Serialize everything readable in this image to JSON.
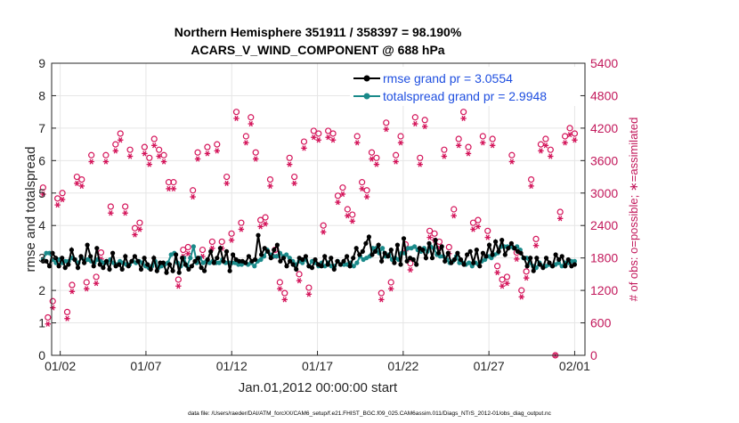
{
  "chart_data": {
    "type": "line",
    "title_line1": "Northern Hemisphere 351911 / 358397 = 98.190%",
    "title_line2": "ACARS_V_WIND_COMPONENT @ 688 hPa",
    "xlabel": "Jan.01,2012 00:00:00 start",
    "ylabel_left": "rmse and totalspread",
    "ylabel_right": "# of obs: o=possible; ∗=assimilated",
    "footer": "data file: /Users/raeder/DAI/ATM_forcXX/CAM6_setup/f.e21.FHIST_BGC.f09_025.CAM6assim.011/Diags_NTrS_2012-01/obs_diag_output.nc",
    "x_range_days": [
      0.5,
      31.6
    ],
    "xticks": [
      {
        "day": 1,
        "label": "01/02"
      },
      {
        "day": 6,
        "label": "01/07"
      },
      {
        "day": 11,
        "label": "01/12"
      },
      {
        "day": 16,
        "label": "01/17"
      },
      {
        "day": 21,
        "label": "01/22"
      },
      {
        "day": 26,
        "label": "01/27"
      },
      {
        "day": 31,
        "label": "02/01"
      }
    ],
    "ylim_left": [
      0,
      9
    ],
    "yticks_left": [
      "0",
      "1",
      "2",
      "3",
      "4",
      "5",
      "6",
      "7",
      "8",
      "9"
    ],
    "ylim_right": [
      0,
      5400
    ],
    "yticks_right": [
      "0",
      "600",
      "1200",
      "1800",
      "2400",
      "3000",
      "3600",
      "4200",
      "4800",
      "5400"
    ],
    "colors": {
      "rmse": "#000000",
      "spread": "#1a8a8a",
      "obs": "#d4145a",
      "legend_text": "#1f4fe0",
      "grid": "#e6e6e6"
    },
    "series": [
      {
        "name": "rmse",
        "legend": "rmse grand pr = 3.0554",
        "values": [
          2.9,
          2.9,
          2.75,
          3.15,
          3.0,
          2.75,
          3.0,
          2.7,
          2.8,
          3.25,
          2.95,
          2.7,
          3.05,
          2.85,
          3.4,
          3.05,
          2.75,
          3.3,
          2.8,
          2.7,
          2.9,
          2.65,
          3.15,
          2.75,
          2.8,
          2.65,
          3.05,
          2.75,
          2.9,
          3.05,
          2.9,
          2.65,
          3.0,
          2.8,
          2.65,
          3.0,
          2.6,
          2.85,
          2.85,
          2.55,
          2.8,
          2.6,
          3.1,
          2.55,
          3.0,
          2.8,
          2.65,
          2.75,
          2.9,
          3.0,
          2.7,
          2.6,
          2.95,
          3.2,
          2.85,
          3.0,
          3.3,
          2.9,
          3.2,
          2.6,
          3.1,
          2.95,
          2.9,
          2.9,
          2.85,
          3.05,
          2.9,
          2.95,
          3.7,
          3.1,
          3.3,
          3.2,
          3.0,
          3.25,
          3.4,
          2.9,
          3.0,
          2.75,
          2.9,
          2.8,
          2.65,
          3.0,
          2.95,
          3.05,
          2.75,
          2.7,
          2.95,
          2.8,
          2.75,
          3.05,
          2.8,
          3.0,
          2.65,
          2.9,
          2.8,
          2.9,
          3.05,
          2.75,
          3.0,
          3.3,
          3.1,
          3.2,
          3.45,
          3.65,
          3.1,
          3.2,
          3.4,
          2.9,
          3.15,
          3.05,
          3.25,
          2.85,
          3.4,
          2.8,
          3.6,
          2.9,
          3.0,
          2.95,
          2.8,
          3.3,
          3.25,
          3.0,
          3.45,
          3.0,
          3.55,
          3.15,
          3.35,
          2.9,
          3.15,
          2.85,
          2.95,
          3.15,
          2.95,
          2.8,
          3.1,
          3.2,
          2.85,
          3.25,
          2.75,
          3.15,
          3.05,
          3.4,
          3.1,
          3.5,
          3.2,
          3.55,
          3.1,
          3.3,
          3.45,
          3.3,
          3.2,
          3.15,
          3.0,
          2.75,
          3.0,
          2.6,
          3.0,
          2.8,
          2.7,
          3.0,
          2.85,
          2.75,
          3.1,
          2.95,
          3.05,
          2.75,
          2.95,
          2.75,
          2.8
        ]
      },
      {
        "name": "totalspread",
        "legend": "totalspread grand pr = 2.9948",
        "values": [
          2.95,
          3.15,
          3.15,
          2.95,
          2.85,
          2.95,
          2.85,
          2.9,
          2.9,
          3.0,
          2.95,
          2.85,
          3.0,
          2.9,
          2.95,
          2.9,
          2.85,
          2.95,
          2.9,
          2.85,
          2.85,
          2.95,
          2.85,
          2.8,
          2.9,
          2.85,
          2.8,
          2.8,
          2.9,
          2.85,
          2.9,
          2.85,
          2.75,
          2.7,
          2.75,
          2.9,
          2.7,
          2.75,
          2.8,
          2.85,
          3.1,
          3.15,
          2.85,
          2.75,
          3.0,
          2.75,
          3.0,
          3.35,
          2.85,
          3.0,
          2.85,
          2.9,
          2.85,
          2.9,
          2.85,
          2.85,
          2.95,
          2.85,
          2.85,
          2.85,
          2.85,
          2.8,
          2.8,
          2.85,
          2.8,
          2.85,
          2.75,
          2.9,
          2.95,
          3.05,
          3.25,
          3.1,
          3.05,
          3.05,
          3.15,
          3.05,
          3.1,
          3.0,
          2.9,
          2.8,
          2.9,
          2.85,
          2.95,
          2.75,
          2.9,
          2.85,
          2.75,
          2.85,
          2.75,
          2.85,
          2.75,
          2.75,
          2.9,
          2.8,
          2.8,
          2.8,
          2.85,
          2.75,
          2.85,
          3.05,
          2.95,
          3.0,
          3.05,
          3.3,
          3.3,
          3.15,
          3.3,
          3.05,
          3.1,
          2.95,
          3.0,
          2.95,
          3.15,
          3.15,
          3.3,
          3.3,
          3.35,
          3.25,
          3.2,
          3.3,
          3.2,
          3.35,
          3.3,
          3.1,
          3.05,
          3.05,
          2.95,
          2.85,
          2.9,
          3.05,
          2.85,
          2.85,
          2.8,
          2.85,
          2.75,
          2.85,
          2.8,
          2.9,
          2.95,
          3.05,
          3.0,
          3.1,
          3.15,
          3.35,
          3.35,
          3.35,
          3.35,
          3.3,
          3.35,
          3.25,
          3.0,
          3.0,
          2.85,
          2.75,
          2.7,
          2.85,
          2.75,
          2.75,
          2.8,
          2.75,
          2.8,
          2.85,
          2.75,
          2.85,
          2.85,
          2.9,
          2.9
        ]
      }
    ],
    "obs_count": {
      "possible": [
        3100,
        700,
        1000,
        2900,
        3000,
        800,
        1300,
        3300,
        3250,
        1350,
        3700,
        1450,
        1900,
        3700,
        2750,
        3900,
        4100,
        2750,
        3800,
        2350,
        2450,
        3850,
        3650,
        4000,
        3800,
        3700,
        3200,
        3200,
        1400,
        1950,
        2000,
        3050,
        3750,
        1950,
        3850,
        2100,
        3900,
        2100,
        3300,
        2250,
        4500,
        2450,
        4050,
        4400,
        3750,
        2500,
        2550,
        3250,
        1950,
        1350,
        1150,
        3650,
        3300,
        1500,
        3950,
        1250,
        4150,
        4100,
        2400,
        4150,
        4100,
        2950,
        3100,
        2700,
        2600,
        4050,
        3200,
        3050,
        3750,
        3650,
        1150,
        4300,
        1350,
        3700,
        4050,
        2050,
        1700,
        4400,
        3650,
        4350,
        2300,
        2250,
        2100,
        3800,
        2000,
        2700,
        4000,
        4500,
        3850,
        2450,
        2500,
        4050,
        2300,
        4000,
        1650,
        1400,
        1450,
        3700,
        1900,
        1200,
        1550,
        3250,
        2150,
        3900,
        4000,
        3800,
        0,
        2650,
        4050,
        4200,
        4100
      ]
    }
  }
}
